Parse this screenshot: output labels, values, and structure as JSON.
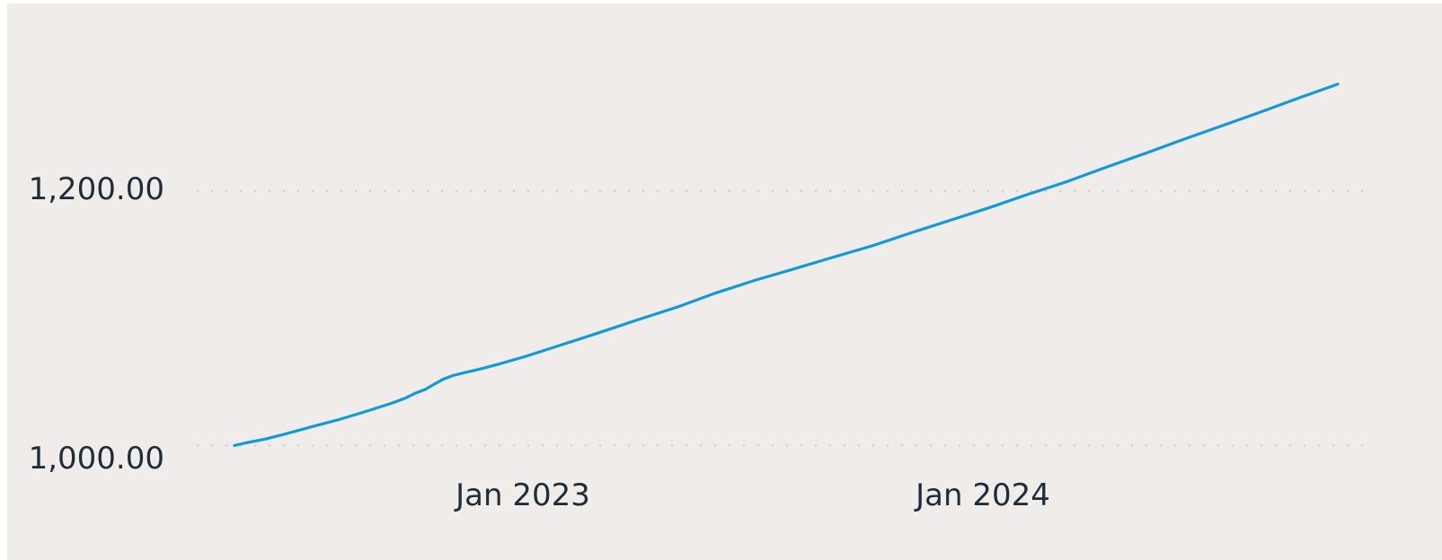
{
  "chart_data": {
    "type": "line",
    "title": "",
    "xlabel": "",
    "ylabel": "",
    "x_tick_labels": [
      "Jan 2023",
      "Jan 2024"
    ],
    "y_tick_labels": [
      "1,000.00",
      "1,200.00"
    ],
    "y_ticks": [
      1000,
      1200
    ],
    "ylim": [
      965,
      1305
    ],
    "grid": "horizontal dotted",
    "legend": "none",
    "color": "#129ad7",
    "series": [
      {
        "x": [
          "2022-07-01",
          "2022-07-10",
          "2022-07-25",
          "2022-08-10",
          "2022-09-01",
          "2022-09-20",
          "2022-10-10",
          "2022-11-01",
          "2022-11-12",
          "2022-11-20",
          "2022-11-28",
          "2022-12-05",
          "2022-12-12",
          "2022-12-20",
          "2022-12-28",
          "2023-01-10",
          "2023-01-25",
          "2023-02-15",
          "2023-03-15",
          "2023-04-15",
          "2023-05-15",
          "2023-06-15",
          "2023-07-15",
          "2023-08-15",
          "2023-09-15",
          "2023-10-15",
          "2023-11-15",
          "2023-12-15",
          "2024-01-15",
          "2024-02-15",
          "2024-03-15",
          "2024-04-15",
          "2024-05-15",
          "2024-06-15",
          "2024-07-15",
          "2024-08-15",
          "2024-09-15",
          "2024-10-15",
          "2024-11-15"
        ],
        "y": [
          1000,
          1002,
          1005,
          1009,
          1015,
          1020,
          1026,
          1033,
          1037,
          1041,
          1044,
          1048,
          1052,
          1055,
          1057,
          1060,
          1064,
          1070,
          1079,
          1089,
          1099,
          1109,
          1120,
          1130,
          1139,
          1148,
          1157,
          1167,
          1177,
          1187,
          1197,
          1207,
          1218,
          1229,
          1240,
          1251,
          1262,
          1273,
          1284
        ]
      }
    ]
  }
}
